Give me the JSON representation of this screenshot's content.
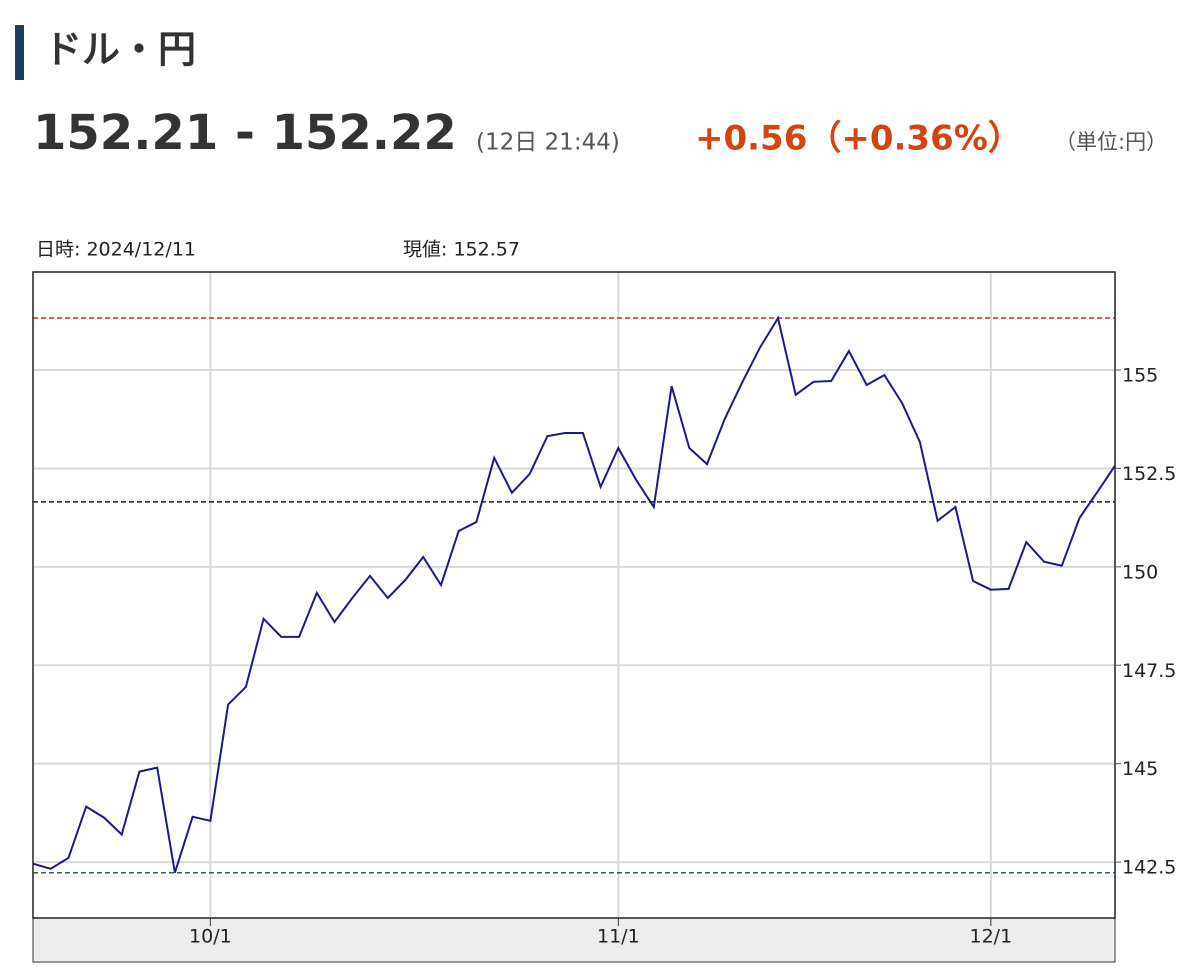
{
  "header": {
    "title": "ドル・円",
    "price": "152.21 - 152.22",
    "time": "(12日 21:44)",
    "change": "+0.56（+0.36%）",
    "unit": "（単位:円）"
  },
  "info": {
    "date": "日時: 2024/12/11",
    "value": "現値: 152.57"
  },
  "chart_data": {
    "type": "line",
    "categories": [
      null,
      null,
      null,
      null,
      null,
      null,
      null,
      null,
      null,
      null,
      "10/1",
      null,
      null,
      null,
      null,
      null,
      null,
      null,
      null,
      null,
      null,
      null,
      null,
      null,
      null,
      null,
      null,
      null,
      null,
      null,
      null,
      null,
      null,
      "11/1",
      null,
      null,
      null,
      null,
      null,
      null,
      null,
      null,
      null,
      null,
      null,
      null,
      null,
      null,
      null,
      null,
      null,
      null,
      null,
      null,
      "12/1",
      null,
      null,
      null,
      null,
      null,
      null,
      null
    ],
    "series": [
      {
        "name": "USD/JPY",
        "color": "#1a1a8c",
        "values": [
          142.46,
          142.33,
          142.61,
          143.91,
          143.63,
          143.2,
          144.8,
          144.9,
          142.23,
          143.65,
          143.55,
          146.5,
          146.95,
          148.68,
          148.22,
          148.22,
          149.34,
          148.6,
          149.21,
          149.77,
          149.21,
          149.67,
          150.25,
          149.54,
          150.91,
          151.14,
          152.77,
          151.88,
          152.36,
          153.32,
          153.4,
          153.4,
          152.03,
          153.02,
          152.21,
          151.52,
          154.59,
          153.02,
          152.61,
          153.76,
          154.7,
          155.58,
          156.32,
          154.37,
          154.7,
          154.72,
          155.48,
          154.62,
          154.87,
          154.16,
          153.17,
          151.17,
          151.52,
          149.64,
          149.42,
          149.44,
          150.63,
          150.13,
          150.03,
          151.24,
          151.9,
          152.57
        ]
      }
    ],
    "reference_lines": [
      {
        "value": 156.32,
        "color": "#c0272d"
      },
      {
        "value": 151.65,
        "color": "#222222"
      },
      {
        "value": 142.23,
        "color": "#2d5a8c"
      }
    ],
    "ylim": [
      141.08,
      157.49
    ],
    "yticks": [
      142.5,
      145,
      147.5,
      150,
      152.5,
      155
    ],
    "grid": true
  }
}
